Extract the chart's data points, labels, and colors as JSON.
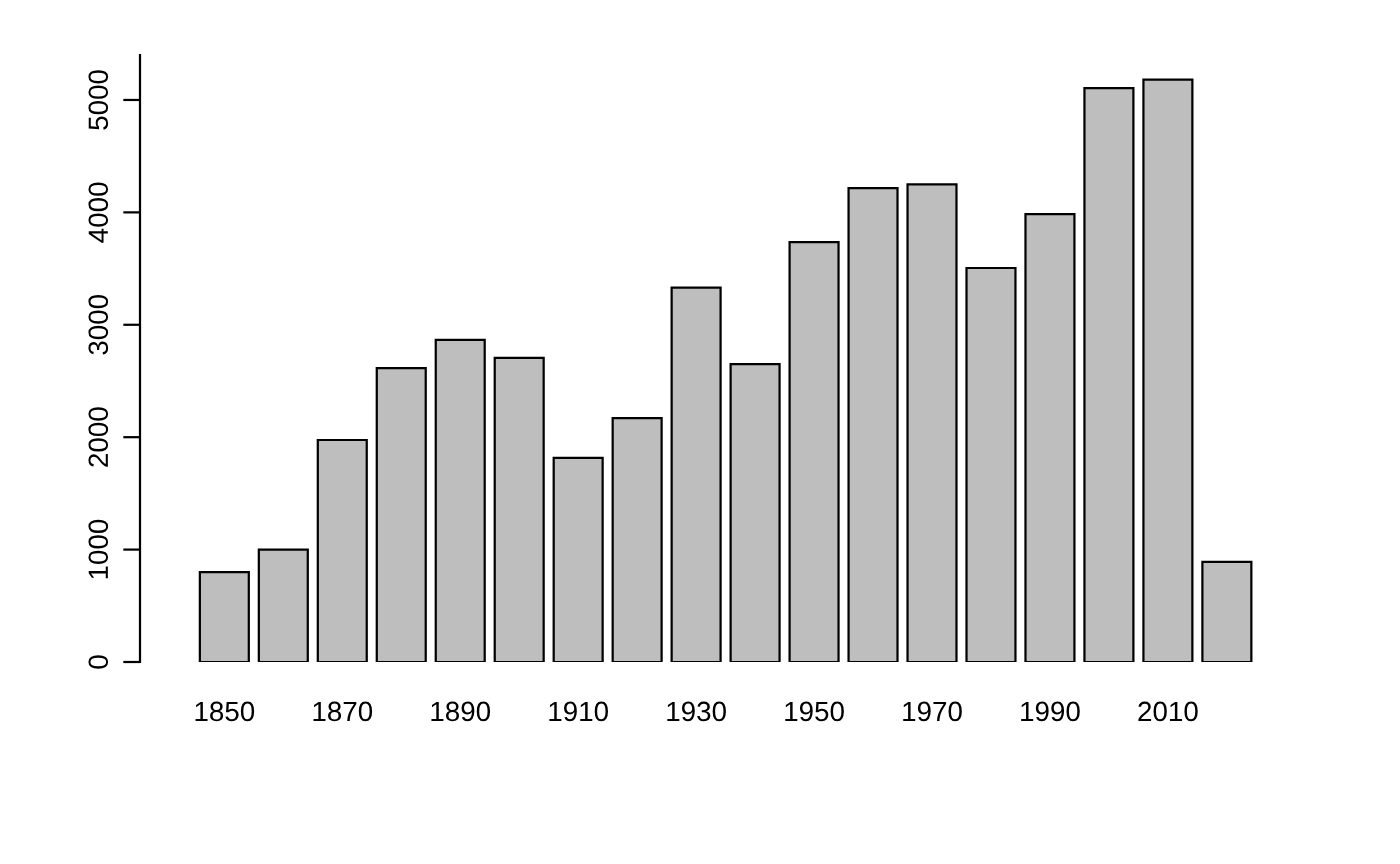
{
  "chart_data": {
    "type": "bar",
    "categories": [
      "1850",
      null,
      "1870",
      null,
      "1890",
      null,
      "1910",
      null,
      "1930",
      null,
      "1950",
      null,
      "1970",
      null,
      "1990",
      null,
      "2010",
      null
    ],
    "values": [
      800,
      1000,
      1975,
      2615,
      2865,
      2705,
      1815,
      2170,
      3330,
      2650,
      3735,
      4215,
      4250,
      3505,
      3985,
      5105,
      5180,
      890
    ],
    "color": "#bebebe",
    "ylim": [
      0,
      5400
    ],
    "yticks": [
      0,
      1000,
      2000,
      3000,
      4000,
      5000
    ],
    "grid": false
  }
}
